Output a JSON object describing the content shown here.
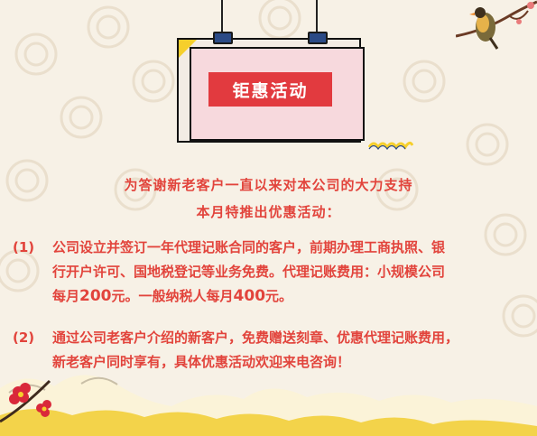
{
  "banner": {
    "title": "钜惠活动"
  },
  "intro": {
    "line1": "为答谢新老客户一直以来对本公司的大力支持",
    "line2": "本月特推出优惠活动："
  },
  "items": [
    {
      "num": "(1)",
      "line1": "公司设立并签订一年代理记账合同的客户，前期办理工商执照、银",
      "line2": "行开户许可、国地税登记等业务免费。代理记账费用：小规模公司",
      "line3_pre": "每月",
      "line3_amount1": "200",
      "line3_mid": "元。一般纳税人每月",
      "line3_amount2": "400",
      "line3_post": "元。"
    },
    {
      "num": "(2)",
      "line1": "通过公司老客户介绍的新客户，免费赠送刻章、优惠代理记账费用，",
      "line2": "新老客户同时享有，具体优惠活动欢迎来电咨询！"
    }
  ],
  "colors": {
    "background": "#f7f1e6",
    "accent_red": "#e23a3f",
    "text_red": "#e2443c",
    "card_pink": "#f7d9dd",
    "clip_blue": "#2b4a86",
    "squiggle_yellow": "#f6cf2c"
  }
}
